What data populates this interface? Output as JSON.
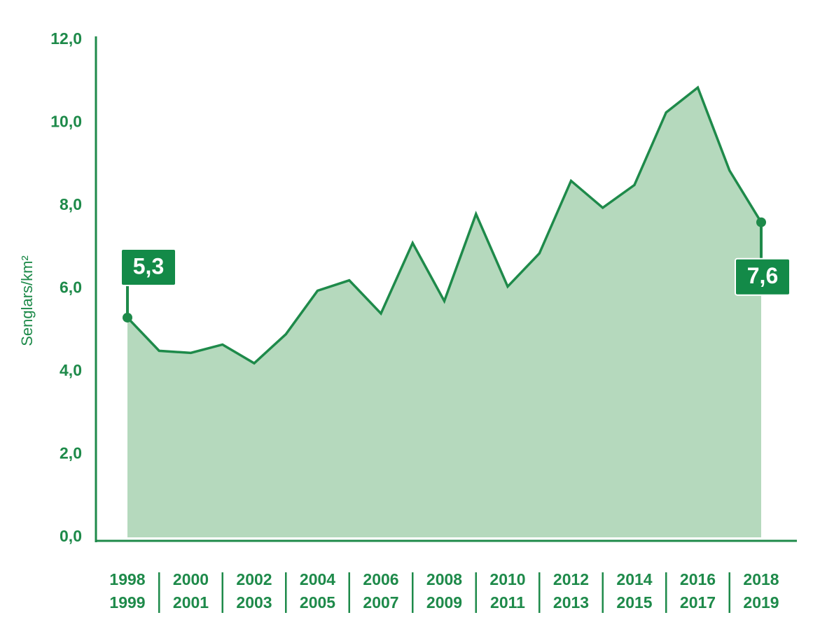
{
  "chart_data": {
    "type": "area",
    "y_label": "Senglars/km²",
    "categories": [
      [
        "1998",
        "1999"
      ],
      null,
      [
        "2000",
        "2001"
      ],
      null,
      [
        "2002",
        "2003"
      ],
      null,
      [
        "2004",
        "2005"
      ],
      null,
      [
        "2006",
        "2007"
      ],
      null,
      [
        "2008",
        "2009"
      ],
      null,
      [
        "2010",
        "2011"
      ],
      null,
      [
        "2012",
        "2013"
      ],
      null,
      [
        "2014",
        "2015"
      ],
      null,
      [
        "2016",
        "2017"
      ],
      null,
      [
        "2018",
        "2019"
      ]
    ],
    "values": [
      5.3,
      4.5,
      4.45,
      4.65,
      4.2,
      4.9,
      5.95,
      6.2,
      5.4,
      7.1,
      5.7,
      7.8,
      6.05,
      6.85,
      8.6,
      7.95,
      8.5,
      10.25,
      10.85,
      8.85,
      7.6
    ],
    "value_labels": [
      "5,3",
      null,
      null,
      null,
      null,
      null,
      null,
      null,
      null,
      null,
      null,
      null,
      null,
      null,
      null,
      null,
      null,
      null,
      null,
      null,
      "7,6"
    ],
    "color": "#1e8a4a",
    "fill": "#b5d9bd",
    "ylim": [
      0,
      12
    ],
    "yticks": [
      {
        "value": 0,
        "label": "0,0"
      },
      {
        "value": 2,
        "label": "2,0"
      },
      {
        "value": 4,
        "label": "4,0"
      },
      {
        "value": 6,
        "label": "6,0"
      },
      {
        "value": 8,
        "label": "8,0"
      },
      {
        "value": 10,
        "label": "10,0"
      },
      {
        "value": 12,
        "label": "12,0"
      }
    ]
  }
}
